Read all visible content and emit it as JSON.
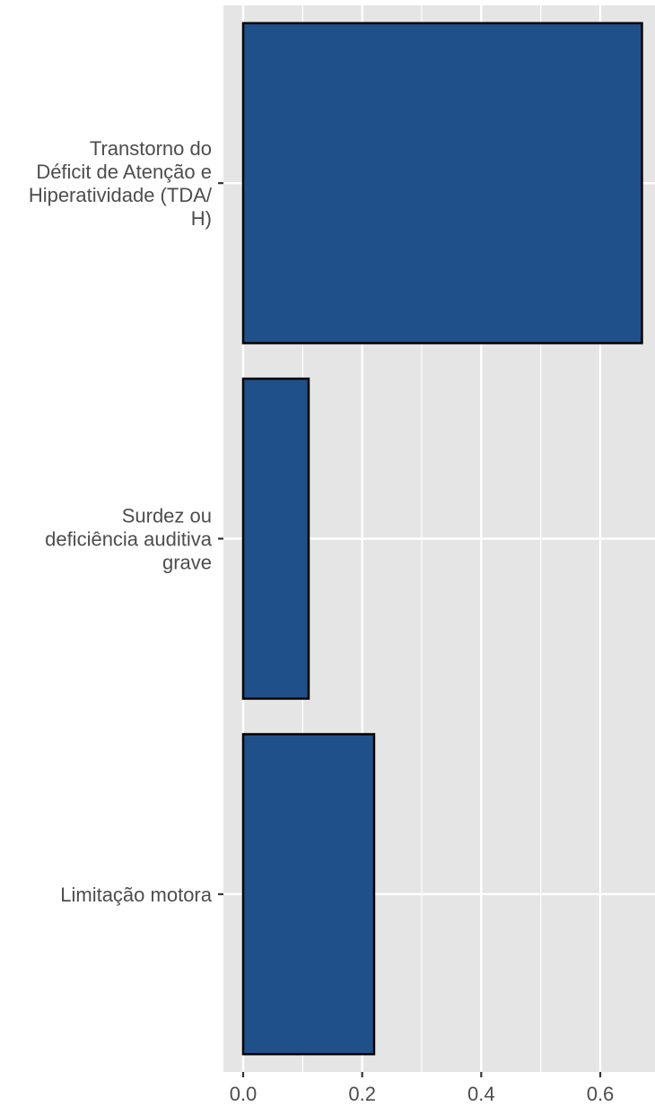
{
  "chart_data": {
    "type": "bar",
    "orientation": "horizontal",
    "title": "",
    "xlabel": "",
    "ylabel": "",
    "categories": [
      "Transtorno do Déficit de Atenção e Hiperatividade (TDA/H)",
      "Surdez ou deficiência auditiva grave",
      "Limitação motora"
    ],
    "category_label_lines": [
      [
        "Transtorno do",
        "Déficit de Atenção e",
        "Hiperatividade (TDA/",
        "H)"
      ],
      [
        "Surdez ou",
        "deficiência auditiva",
        "grave"
      ],
      [
        "Limitação motora"
      ]
    ],
    "values": [
      0.67,
      0.11,
      0.22
    ],
    "xlim": [
      -0.033,
      0.7
    ],
    "xticks": [
      0.0,
      0.2,
      0.4,
      0.6
    ],
    "xtick_labels": [
      "0.0",
      "0.2",
      "0.4",
      "0.6"
    ],
    "x_minor_gridlines": [
      0.1,
      0.3,
      0.5
    ],
    "grid": true,
    "legend": "none",
    "colors": {
      "bar_fill": "#20508A",
      "bar_stroke": "#000000",
      "panel_background": "#E5E5E5",
      "gridline": "#FFFFFF",
      "text": "#4D4D4D"
    }
  }
}
